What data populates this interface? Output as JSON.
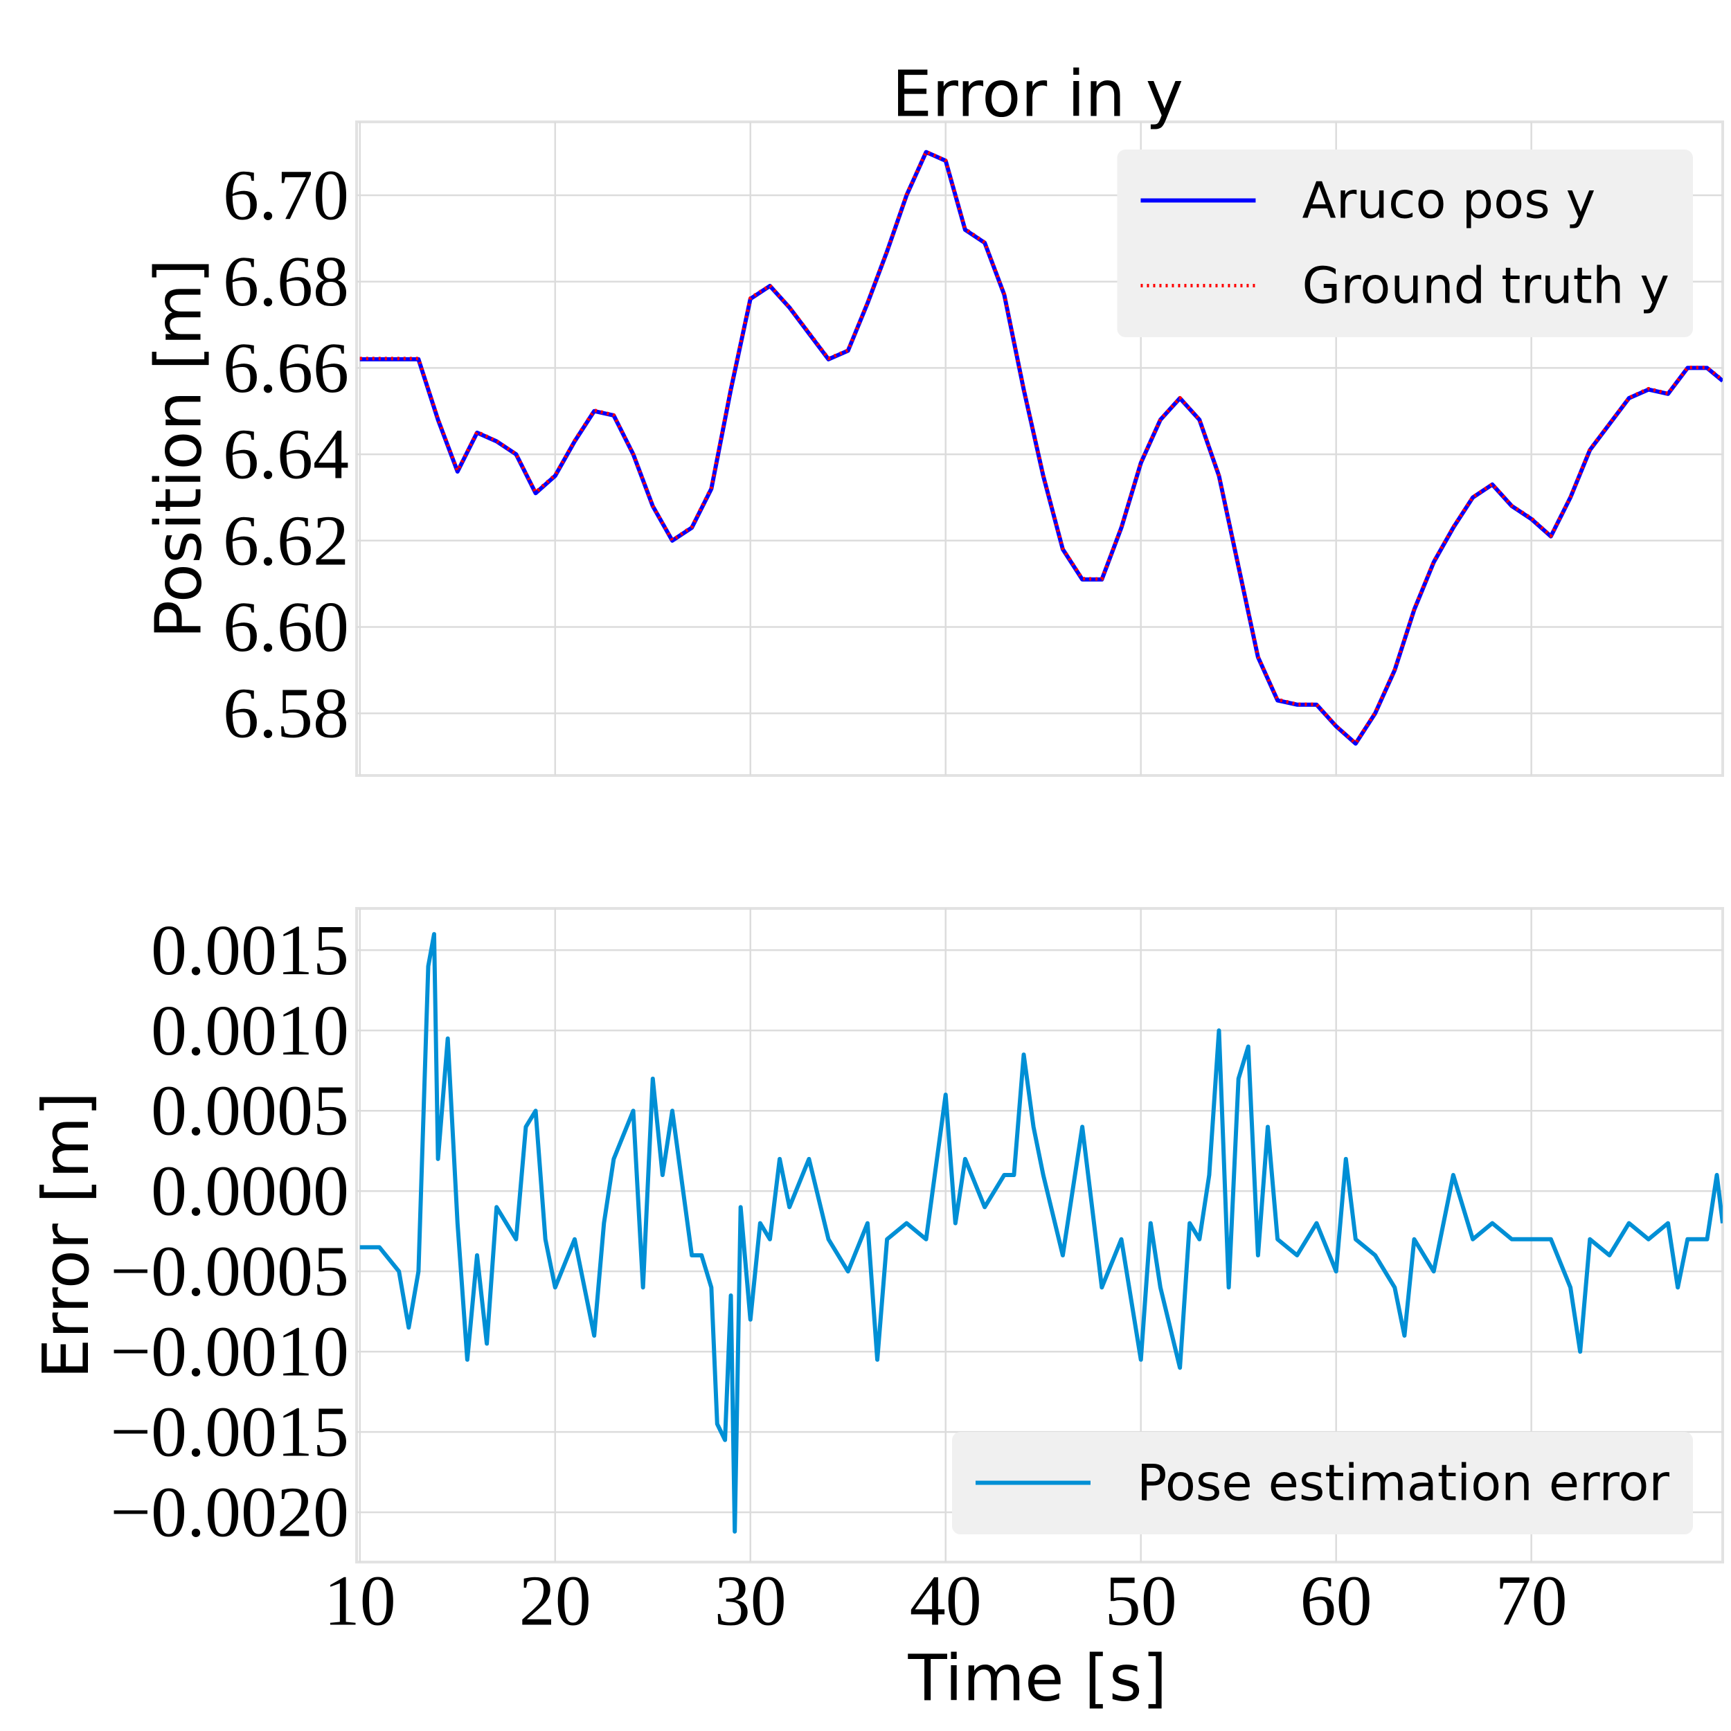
{
  "chart_data": [
    {
      "type": "line",
      "title": "Error in y",
      "ylabel": "Position [m]",
      "grid": true,
      "legend": "upper right",
      "xlim": [
        9.83,
        79.8
      ],
      "ylim": [
        6.5656,
        6.717
      ],
      "yticks": [
        6.58,
        {
          "value": 6.6,
          "label": "6.60"
        },
        6.62,
        6.64,
        6.66,
        6.68,
        {
          "value": 6.7,
          "label": "6.70"
        }
      ],
      "x": [
        10,
        11,
        12,
        13,
        14,
        15,
        16,
        17,
        18,
        19,
        20,
        21,
        22,
        23,
        24,
        25,
        26,
        27,
        28,
        29,
        30,
        31,
        32,
        33,
        34,
        35,
        36,
        37,
        38,
        39,
        40,
        41,
        42,
        43,
        44,
        45,
        46,
        47,
        48,
        49,
        50,
        51,
        52,
        53,
        54,
        55,
        56,
        57,
        58,
        59,
        60,
        61,
        62,
        63,
        64,
        65,
        66,
        67,
        68,
        69,
        70,
        71,
        72,
        73,
        74,
        75,
        76,
        77,
        78,
        79,
        79.8
      ],
      "series": [
        {
          "name": "Aruco pos y",
          "color": "#0000ff",
          "linestyle": "solid",
          "values": [
            6.662,
            6.662,
            6.662,
            6.662,
            6.648,
            6.636,
            6.645,
            6.643,
            6.64,
            6.631,
            6.635,
            6.643,
            6.65,
            6.649,
            6.64,
            6.628,
            6.62,
            6.623,
            6.632,
            6.655,
            6.676,
            6.679,
            6.674,
            6.668,
            6.662,
            6.664,
            6.675,
            6.687,
            6.7,
            6.71,
            6.708,
            6.692,
            6.689,
            6.677,
            6.655,
            6.635,
            6.618,
            6.611,
            6.611,
            6.623,
            6.638,
            6.648,
            6.653,
            6.648,
            6.635,
            6.614,
            6.593,
            6.583,
            6.582,
            6.582,
            6.577,
            6.573,
            6.58,
            6.59,
            6.604,
            6.615,
            6.623,
            6.63,
            6.633,
            6.628,
            6.625,
            6.621,
            6.63,
            6.641,
            6.647,
            6.653,
            6.655,
            6.654,
            6.66,
            6.66,
            6.657
          ]
        },
        {
          "name": "Ground truth y",
          "color": "#ff0000",
          "linestyle": "dotted",
          "values": [
            6.6622,
            6.6622,
            6.6622,
            6.6622,
            6.6483,
            6.6362,
            6.6452,
            6.6431,
            6.6401,
            6.6312,
            6.6352,
            6.6432,
            6.6502,
            6.6491,
            6.6401,
            6.6281,
            6.6201,
            6.6232,
            6.6323,
            6.6555,
            6.6762,
            6.6791,
            6.6741,
            6.6682,
            6.6622,
            6.6641,
            6.6752,
            6.6871,
            6.7002,
            6.7101,
            6.7081,
            6.6922,
            6.6891,
            6.6772,
            6.6552,
            6.6352,
            6.6182,
            6.6112,
            6.6111,
            6.6232,
            6.6382,
            6.6481,
            6.6531,
            6.6481,
            6.6351,
            6.6141,
            6.5932,
            6.5832,
            6.5821,
            6.5821,
            6.5771,
            6.5731,
            6.5802,
            6.5902,
            6.6042,
            6.6152,
            6.6232,
            6.6301,
            6.6331,
            6.6281,
            6.6252,
            6.6211,
            6.6301,
            6.6412,
            6.6471,
            6.6531,
            6.6552,
            6.6541,
            6.6601,
            6.6601,
            6.6572
          ]
        }
      ]
    },
    {
      "type": "line",
      "ylabel": "Error [m]",
      "xlabel": "Time [s]",
      "grid": true,
      "legend": "lower right",
      "xlim": [
        9.83,
        79.8
      ],
      "ylim": [
        -0.00231,
        0.00176
      ],
      "xticks": [
        10,
        20,
        30,
        40,
        50,
        60,
        70
      ],
      "yticks": [
        {
          "value": -0.002,
          "label": "−0.0020"
        },
        {
          "value": -0.0015,
          "label": "−0.0015"
        },
        {
          "value": -0.001,
          "label": "−0.0010"
        },
        {
          "value": -0.0005,
          "label": "−0.0005"
        },
        {
          "value": 0,
          "label": "0.0000"
        },
        0.0005,
        {
          "value": 0.001,
          "label": "0.0010"
        },
        0.0015
      ],
      "x": [
        10,
        11,
        12,
        12.5,
        13,
        13.5,
        13.8,
        14,
        14.5,
        15,
        15.5,
        16,
        16.5,
        17,
        18,
        18.5,
        19,
        19.5,
        20,
        21,
        22,
        22.5,
        23,
        24,
        24.5,
        25,
        25.5,
        26,
        27,
        27.5,
        28,
        28.3,
        28.7,
        29,
        29.2,
        29.5,
        30,
        30.5,
        31,
        31.5,
        32,
        33,
        34,
        35,
        36,
        36.5,
        37,
        38,
        39,
        40,
        40.5,
        41,
        42,
        43,
        43.5,
        44,
        44.5,
        45,
        46,
        47,
        48,
        49,
        50,
        50.5,
        51,
        52,
        52.5,
        53,
        53.5,
        54,
        54.5,
        55,
        55.5,
        56,
        56.5,
        57,
        58,
        59,
        60,
        60.5,
        61,
        62,
        63,
        63.5,
        64,
        65,
        66,
        67,
        68,
        69,
        70,
        71,
        72,
        72.5,
        73,
        74,
        75,
        76,
        77,
        77.5,
        78,
        79,
        79.5,
        79.8
      ],
      "series": [
        {
          "name": "Pose estimation error",
          "color": "#008fd5",
          "linestyle": "solid",
          "values": [
            -0.00035,
            -0.00035,
            -0.0005,
            -0.00085,
            -0.0005,
            0.0014,
            0.0016,
            0.0002,
            0.00095,
            -0.0002,
            -0.00105,
            -0.0004,
            -0.00095,
            -0.0001,
            -0.0003,
            0.0004,
            0.0005,
            -0.0003,
            -0.0006,
            -0.0003,
            -0.0009,
            -0.0002,
            0.0002,
            0.0005,
            -0.0006,
            0.0007,
            0.0001,
            0.0005,
            -0.0004,
            -0.0004,
            -0.0006,
            -0.00145,
            -0.00155,
            -0.00065,
            -0.00212,
            -0.0001,
            -0.0008,
            -0.0002,
            -0.0003,
            0.0002,
            -0.0001,
            0.0002,
            -0.0003,
            -0.0005,
            -0.0002,
            -0.00105,
            -0.0003,
            -0.0002,
            -0.0003,
            0.0006,
            -0.0002,
            0.0002,
            -0.0001,
            0.0001,
            0.0001,
            0.00085,
            0.0004,
            0.0001,
            -0.0004,
            0.0004,
            -0.0006,
            -0.0003,
            -0.00105,
            -0.0002,
            -0.0006,
            -0.0011,
            -0.0002,
            -0.0003,
            0.0001,
            0.001,
            -0.0006,
            0.0007,
            0.0009,
            -0.0004,
            0.0004,
            -0.0003,
            -0.0004,
            -0.0002,
            -0.0005,
            0.0002,
            -0.0003,
            -0.0004,
            -0.0006,
            -0.0009,
            -0.0003,
            -0.0005,
            0.0001,
            -0.0003,
            -0.0002,
            -0.0003,
            -0.0003,
            -0.0003,
            -0.0006,
            -0.001,
            -0.0003,
            -0.0004,
            -0.0002,
            -0.0003,
            -0.0002,
            -0.0006,
            -0.0003,
            -0.0003,
            0.0001,
            -0.0002
          ]
        }
      ]
    }
  ]
}
